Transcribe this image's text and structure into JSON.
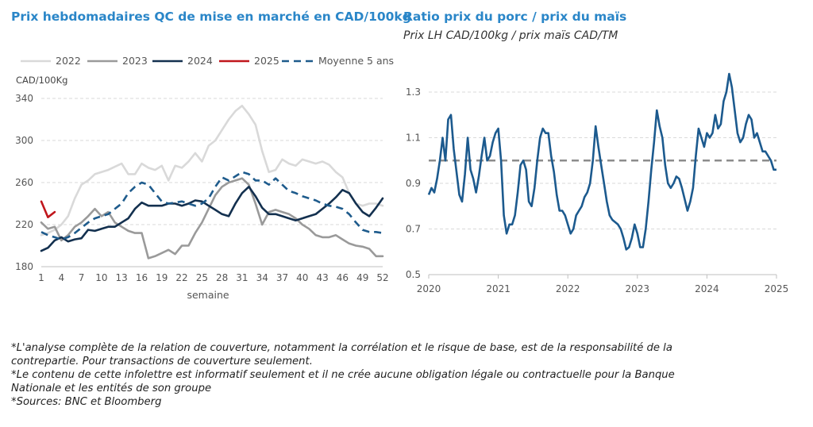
{
  "left_title": "Prix hebdomadaires QC de mise en marché en CAD/100kg",
  "right_title": "Ratio prix du porc / prix du maïs",
  "right_subtitle": "Prix LH CAD/100kg / prix maïs CAD/TM",
  "notes": [
    "*L'analyse complète de la relation de couverture, notamment la corrélation et le risque de base, est de la responsabilité de la contrepartie. Pour transactions de couverture seulement.",
    "*Le contenu de cette infolettre est informatif seulement et il ne crée aucune obligation légale ou contractuelle pour la Banque Nationale et les entités de son groupe",
    "*Sources: BNC et Bloomberg"
  ],
  "chart_data": [
    {
      "type": "line",
      "title": "Prix hebdomadaires QC de mise en marché en CAD/100kg",
      "xlabel": "semaine",
      "ylabel": "CAD/100Kg",
      "xlim": [
        1,
        52
      ],
      "ylim": [
        180,
        340
      ],
      "x_ticks": [
        1,
        4,
        7,
        10,
        13,
        16,
        19,
        22,
        25,
        28,
        31,
        34,
        37,
        40,
        43,
        46,
        49,
        52
      ],
      "y_ticks": [
        180,
        220,
        260,
        300,
        340
      ],
      "grid": "horizontal dashed",
      "legend": "top",
      "series": [
        {
          "name": "2022",
          "color": "#d9d9d9",
          "style": "solid",
          "x": [
            1,
            2,
            3,
            4,
            5,
            6,
            7,
            8,
            9,
            10,
            11,
            12,
            13,
            14,
            15,
            16,
            17,
            18,
            19,
            20,
            21,
            22,
            23,
            24,
            25,
            26,
            27,
            28,
            29,
            30,
            31,
            32,
            33,
            34,
            35,
            36,
            37,
            38,
            39,
            40,
            41,
            42,
            43,
            44,
            45,
            46,
            47,
            48,
            49,
            50,
            51,
            52
          ],
          "y": [
            210,
            212,
            215,
            220,
            228,
            245,
            258,
            262,
            268,
            270,
            272,
            275,
            278,
            268,
            268,
            278,
            274,
            272,
            276,
            262,
            276,
            274,
            280,
            288,
            280,
            295,
            300,
            310,
            320,
            328,
            333,
            325,
            315,
            290,
            270,
            272,
            282,
            278,
            276,
            282,
            280,
            278,
            280,
            277,
            270,
            265,
            250,
            240,
            238,
            240,
            240,
            238
          ]
        },
        {
          "name": "2023",
          "color": "#9a9a9a",
          "style": "solid",
          "x": [
            1,
            2,
            3,
            4,
            5,
            6,
            7,
            8,
            9,
            10,
            11,
            12,
            13,
            14,
            15,
            16,
            17,
            18,
            19,
            20,
            21,
            22,
            23,
            24,
            25,
            26,
            27,
            28,
            29,
            30,
            31,
            32,
            33,
            34,
            35,
            36,
            37,
            38,
            39,
            40,
            41,
            42,
            43,
            44,
            45,
            46,
            47,
            48,
            49,
            50,
            51,
            52
          ],
          "y": [
            222,
            216,
            218,
            205,
            210,
            218,
            222,
            228,
            235,
            228,
            232,
            222,
            218,
            214,
            212,
            212,
            188,
            190,
            193,
            196,
            192,
            200,
            200,
            212,
            222,
            235,
            248,
            256,
            260,
            262,
            264,
            258,
            240,
            220,
            232,
            234,
            232,
            230,
            226,
            220,
            216,
            210,
            208,
            208,
            210,
            206,
            202,
            200,
            199,
            197,
            190,
            190
          ]
        },
        {
          "name": "2024",
          "color": "#13304f",
          "style": "solid",
          "x": [
            1,
            2,
            3,
            4,
            5,
            6,
            7,
            8,
            9,
            10,
            11,
            12,
            13,
            14,
            15,
            16,
            17,
            18,
            19,
            20,
            21,
            22,
            23,
            24,
            25,
            26,
            27,
            28,
            29,
            30,
            31,
            32,
            33,
            34,
            35,
            36,
            37,
            38,
            39,
            40,
            41,
            42,
            43,
            44,
            45,
            46,
            47,
            48,
            49,
            50,
            51,
            52
          ],
          "y": [
            195,
            198,
            205,
            208,
            204,
            206,
            207,
            215,
            214,
            216,
            218,
            218,
            222,
            226,
            235,
            241,
            238,
            238,
            238,
            240,
            240,
            238,
            240,
            243,
            242,
            238,
            234,
            230,
            228,
            240,
            250,
            256,
            247,
            236,
            230,
            230,
            228,
            226,
            224,
            226,
            228,
            230,
            235,
            240,
            246,
            253,
            250,
            240,
            232,
            228,
            236,
            245
          ]
        },
        {
          "name": "2025",
          "color": "#c0161c",
          "style": "solid",
          "x": [
            1,
            2,
            3
          ],
          "y": [
            242,
            227,
            232
          ]
        },
        {
          "name": "Moyenne 5 ans",
          "color": "#1e5b8c",
          "style": "dashed",
          "x": [
            1,
            2,
            3,
            4,
            5,
            6,
            7,
            8,
            9,
            10,
            11,
            12,
            13,
            14,
            15,
            16,
            17,
            18,
            19,
            20,
            21,
            22,
            23,
            24,
            25,
            26,
            27,
            28,
            29,
            30,
            31,
            32,
            33,
            34,
            35,
            36,
            37,
            38,
            39,
            40,
            41,
            42,
            43,
            44,
            45,
            46,
            47,
            48,
            49,
            50,
            51,
            52
          ],
          "y": [
            213,
            210,
            208,
            206,
            208,
            212,
            217,
            222,
            226,
            228,
            230,
            235,
            240,
            250,
            256,
            260,
            258,
            250,
            242,
            240,
            241,
            242,
            240,
            238,
            240,
            245,
            256,
            265,
            262,
            266,
            270,
            268,
            262,
            262,
            258,
            264,
            258,
            252,
            250,
            247,
            245,
            243,
            240,
            238,
            237,
            235,
            230,
            222,
            215,
            213,
            213,
            212
          ]
        }
      ]
    },
    {
      "type": "line",
      "title": "Ratio prix du porc / prix du maïs",
      "subtitle": "Prix LH CAD/100kg / prix maïs CAD/TM",
      "xlim": [
        2020,
        2025
      ],
      "ylim": [
        0.5,
        1.3
      ],
      "x_ticks": [
        "2020",
        "2021",
        "2022",
        "2023",
        "2024",
        "2025"
      ],
      "y_ticks": [
        0.5,
        0.7,
        0.9,
        1.1,
        1.3
      ],
      "grid": "horizontal dashed",
      "reference_line": {
        "y": 1.0,
        "color": "#8c8c8c",
        "style": "dashed"
      },
      "series": [
        {
          "color": "#1c5a8e",
          "style": "solid",
          "x": [
            2020.0,
            2020.04,
            2020.08,
            2020.12,
            2020.16,
            2020.2,
            2020.24,
            2020.28,
            2020.32,
            2020.36,
            2020.4,
            2020.44,
            2020.48,
            2020.52,
            2020.56,
            2020.6,
            2020.64,
            2020.68,
            2020.72,
            2020.76,
            2020.8,
            2020.84,
            2020.88,
            2020.92,
            2020.96,
            2021.0,
            2021.04,
            2021.08,
            2021.12,
            2021.16,
            2021.2,
            2021.24,
            2021.28,
            2021.32,
            2021.36,
            2021.4,
            2021.44,
            2021.48,
            2021.52,
            2021.56,
            2021.6,
            2021.64,
            2021.68,
            2021.72,
            2021.76,
            2021.8,
            2021.84,
            2021.88,
            2021.92,
            2021.96,
            2022.0,
            2022.04,
            2022.08,
            2022.12,
            2022.16,
            2022.2,
            2022.24,
            2022.28,
            2022.32,
            2022.36,
            2022.4,
            2022.44,
            2022.48,
            2022.52,
            2022.56,
            2022.6,
            2022.64,
            2022.68,
            2022.72,
            2022.76,
            2022.8,
            2022.84,
            2022.88,
            2022.92,
            2022.96,
            2023.0,
            2023.04,
            2023.08,
            2023.12,
            2023.16,
            2023.2,
            2023.24,
            2023.28,
            2023.32,
            2023.36,
            2023.4,
            2023.44,
            2023.48,
            2023.52,
            2023.56,
            2023.6,
            2023.64,
            2023.68,
            2023.72,
            2023.76,
            2023.8,
            2023.84,
            2023.88,
            2023.92,
            2023.96,
            2024.0,
            2024.04,
            2024.08,
            2024.12,
            2024.16,
            2024.2,
            2024.24,
            2024.28,
            2024.32,
            2024.36,
            2024.4,
            2024.44,
            2024.48,
            2024.52,
            2024.56,
            2024.6,
            2024.64,
            2024.68,
            2024.72,
            2024.76,
            2024.8,
            2024.84,
            2024.88,
            2024.92,
            2024.96,
            2025.0
          ],
          "y": [
            0.85,
            0.88,
            0.86,
            0.92,
            1.0,
            1.1,
            1.0,
            1.18,
            1.2,
            1.05,
            0.95,
            0.85,
            0.82,
            0.94,
            1.1,
            0.96,
            0.92,
            0.86,
            0.93,
            1.02,
            1.1,
            1.0,
            1.02,
            1.08,
            1.12,
            1.14,
            1.0,
            0.76,
            0.68,
            0.72,
            0.72,
            0.76,
            0.86,
            0.98,
            1.0,
            0.96,
            0.82,
            0.8,
            0.88,
            1.0,
            1.1,
            1.14,
            1.12,
            1.12,
            1.02,
            0.95,
            0.85,
            0.78,
            0.78,
            0.76,
            0.72,
            0.68,
            0.7,
            0.76,
            0.78,
            0.8,
            0.84,
            0.86,
            0.9,
            1.0,
            1.15,
            1.06,
            0.98,
            0.9,
            0.82,
            0.76,
            0.74,
            0.73,
            0.72,
            0.7,
            0.66,
            0.61,
            0.62,
            0.66,
            0.72,
            0.68,
            0.62,
            0.62,
            0.7,
            0.82,
            0.96,
            1.08,
            1.22,
            1.15,
            1.1,
            0.98,
            0.9,
            0.88,
            0.9,
            0.93,
            0.92,
            0.88,
            0.83,
            0.78,
            0.82,
            0.88,
            1.02,
            1.14,
            1.1,
            1.06,
            1.12,
            1.1,
            1.12,
            1.2,
            1.14,
            1.16,
            1.26,
            1.3,
            1.38,
            1.32,
            1.22,
            1.12,
            1.08,
            1.1,
            1.16,
            1.2,
            1.18,
            1.1,
            1.12,
            1.08,
            1.04,
            1.04,
            1.02,
            1.0,
            0.96,
            0.96
          ]
        }
      ]
    }
  ]
}
